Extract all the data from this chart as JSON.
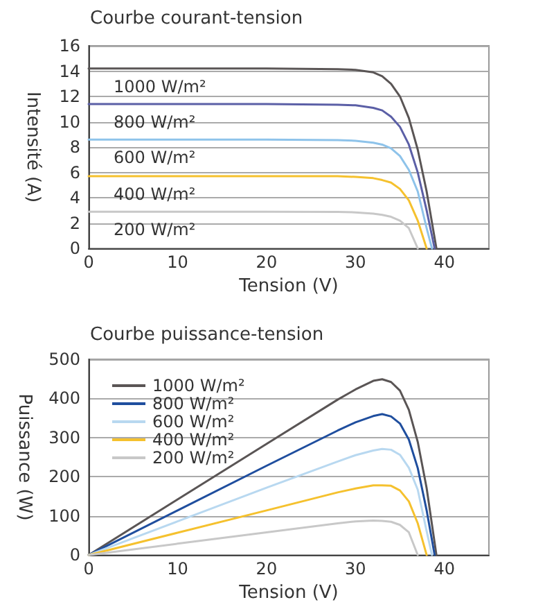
{
  "chart_data": [
    {
      "type": "line",
      "title": "Courbe courant-tension",
      "xlabel": "Tension (V)",
      "ylabel": "Intensité (A)",
      "xlim": [
        0,
        45
      ],
      "xticks": [
        0,
        10,
        20,
        30,
        40
      ],
      "ylim": [
        0,
        16
      ],
      "yticks": [
        0,
        2,
        4,
        6,
        8,
        10,
        12,
        14,
        16
      ],
      "grid": "y",
      "legend": false,
      "marker": "none",
      "line_style": "solid",
      "series": [
        {
          "name": "1000 W/m²",
          "color": "#5a5555",
          "x": [
            0,
            10,
            20,
            28,
            30,
            32,
            33,
            34,
            35,
            36,
            37,
            38,
            39.1
          ],
          "values": [
            14.2,
            14.2,
            14.2,
            14.15,
            14.1,
            13.9,
            13.6,
            13.0,
            12.0,
            10.3,
            7.8,
            4.5,
            0
          ]
        },
        {
          "name": "800 W/m²",
          "color": "#5b5fa6",
          "x": [
            0,
            10,
            20,
            28,
            30,
            32,
            33,
            34,
            35,
            36,
            37,
            38,
            38.9
          ],
          "values": [
            11.4,
            11.4,
            11.4,
            11.35,
            11.3,
            11.1,
            10.9,
            10.4,
            9.6,
            8.2,
            6.0,
            3.0,
            0
          ]
        },
        {
          "name": "600 W/m²",
          "color": "#8ec3ea",
          "x": [
            0,
            10,
            20,
            28,
            30,
            32,
            33,
            34,
            35,
            36,
            37,
            38,
            38.6
          ],
          "values": [
            8.6,
            8.6,
            8.6,
            8.55,
            8.5,
            8.35,
            8.2,
            7.9,
            7.3,
            6.2,
            4.5,
            1.6,
            0
          ]
        },
        {
          "name": "400 W/m²",
          "color": "#f5c12e",
          "x": [
            0,
            10,
            20,
            28,
            30,
            32,
            33,
            34,
            35,
            36,
            37,
            38
          ],
          "values": [
            5.7,
            5.7,
            5.7,
            5.7,
            5.65,
            5.55,
            5.4,
            5.2,
            4.7,
            3.8,
            2.2,
            0
          ]
        },
        {
          "name": "200 W/m²",
          "color": "#c8c8c8",
          "x": [
            0,
            10,
            20,
            28,
            30,
            32,
            33,
            34,
            35,
            36,
            37
          ],
          "values": [
            2.9,
            2.9,
            2.9,
            2.88,
            2.85,
            2.75,
            2.65,
            2.5,
            2.2,
            1.6,
            0
          ]
        }
      ]
    },
    {
      "type": "line",
      "title": "Courbe puissance-tension",
      "xlabel": "Tension (V)",
      "ylabel": "Puissance (W)",
      "xlim": [
        0,
        45
      ],
      "xticks": [
        0,
        10,
        20,
        30,
        40
      ],
      "ylim": [
        0,
        500
      ],
      "yticks": [
        0,
        100,
        200,
        300,
        400,
        500
      ],
      "grid": "y",
      "legend": "top left",
      "marker": "none",
      "line_style": "solid",
      "series": [
        {
          "name": "1000 W/m²",
          "color": "#5a5555",
          "x": [
            0,
            10,
            20,
            28,
            30,
            32,
            33,
            34,
            35,
            36,
            37,
            38,
            39.1
          ],
          "values": [
            0,
            142,
            284,
            397,
            423,
            445,
            449,
            442,
            420,
            371,
            289,
            171,
            0
          ]
        },
        {
          "name": "800 W/m²",
          "color": "#1f4e9e",
          "x": [
            0,
            10,
            20,
            28,
            30,
            32,
            33,
            34,
            35,
            36,
            37,
            38,
            38.9
          ],
          "values": [
            0,
            114,
            228,
            318,
            339,
            355,
            360,
            354,
            336,
            295,
            222,
            114,
            0
          ]
        },
        {
          "name": "600 W/m²",
          "color": "#b8d8f0",
          "x": [
            0,
            10,
            20,
            28,
            30,
            32,
            33,
            34,
            35,
            36,
            37,
            38,
            38.6
          ],
          "values": [
            0,
            86,
            172,
            239,
            255,
            267,
            271,
            269,
            256,
            223,
            167,
            61,
            0
          ]
        },
        {
          "name": "400 W/m²",
          "color": "#f5c12e",
          "x": [
            0,
            10,
            20,
            28,
            30,
            32,
            33,
            34,
            35,
            36,
            37,
            38
          ],
          "values": [
            0,
            57,
            114,
            160,
            170,
            178,
            178,
            177,
            165,
            137,
            81,
            0
          ]
        },
        {
          "name": "200 W/m²",
          "color": "#c8c8c8",
          "x": [
            0,
            10,
            20,
            28,
            30,
            32,
            33,
            34,
            35,
            36,
            37
          ],
          "values": [
            0,
            29,
            58,
            81,
            86,
            88,
            87,
            85,
            77,
            58,
            0
          ]
        }
      ]
    }
  ]
}
